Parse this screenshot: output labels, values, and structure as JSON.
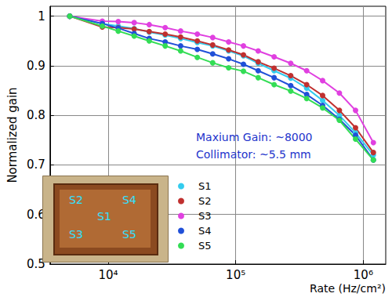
{
  "chart_data": {
    "type": "line",
    "log": "x",
    "grid": true,
    "legend": "center",
    "marker": "circle",
    "x_label": "Rate (Hz/cm²)",
    "y_label": "Normalized gain",
    "annotations": [
      "Maxium Gain: ~8000",
      "Collimator: ~5.5 mm"
    ],
    "inset_labels": [
      "S2",
      "S4",
      "S1",
      "S3",
      "S5"
    ],
    "xlim": [
      3500,
      1500000
    ],
    "xticks": [
      {
        "value": 10000,
        "label": "10⁴"
      },
      {
        "value": 100000,
        "label": "10⁵"
      },
      {
        "value": 1000000,
        "label": "10⁶"
      }
    ],
    "ylim": [
      0.5,
      1.02
    ],
    "yticks": [
      0.5,
      0.6,
      0.7,
      0.8,
      0.9,
      1
    ],
    "x": [
      5000,
      9000,
      12000,
      16000,
      21000,
      28000,
      37000,
      50000,
      66000,
      88000,
      115000,
      150000,
      200000,
      270000,
      360000,
      480000,
      650000,
      870000,
      1200000
    ],
    "series": [
      {
        "name": "S1",
        "color": "#33ccee",
        "values": [
          1.0,
          0.985,
          0.98,
          0.975,
          0.968,
          0.962,
          0.955,
          0.947,
          0.94,
          0.93,
          0.92,
          0.905,
          0.89,
          0.875,
          0.855,
          0.83,
          0.8,
          0.765,
          0.72
        ]
      },
      {
        "name": "S2",
        "color": "#c0302f",
        "values": [
          1.0,
          0.978,
          0.977,
          0.974,
          0.969,
          0.964,
          0.958,
          0.95,
          0.942,
          0.932,
          0.922,
          0.908,
          0.895,
          0.88,
          0.862,
          0.84,
          0.81,
          0.775,
          0.725
        ]
      },
      {
        "name": "S3",
        "color": "#e040e0",
        "values": [
          1.0,
          0.99,
          0.989,
          0.987,
          0.983,
          0.977,
          0.97,
          0.964,
          0.957,
          0.948,
          0.94,
          0.93,
          0.918,
          0.905,
          0.89,
          0.87,
          0.845,
          0.81,
          0.745
        ]
      },
      {
        "name": "S4",
        "color": "#2050d8",
        "values": [
          1.0,
          0.985,
          0.976,
          0.965,
          0.955,
          0.948,
          0.94,
          0.933,
          0.924,
          0.914,
          0.903,
          0.89,
          0.876,
          0.86,
          0.842,
          0.82,
          0.792,
          0.76,
          0.71
        ]
      },
      {
        "name": "S5",
        "color": "#33dd55",
        "values": [
          1.0,
          0.98,
          0.97,
          0.96,
          0.95,
          0.94,
          0.93,
          0.917,
          0.906,
          0.896,
          0.889,
          0.876,
          0.862,
          0.849,
          0.834,
          0.815,
          0.79,
          0.752,
          0.71
        ]
      }
    ]
  }
}
